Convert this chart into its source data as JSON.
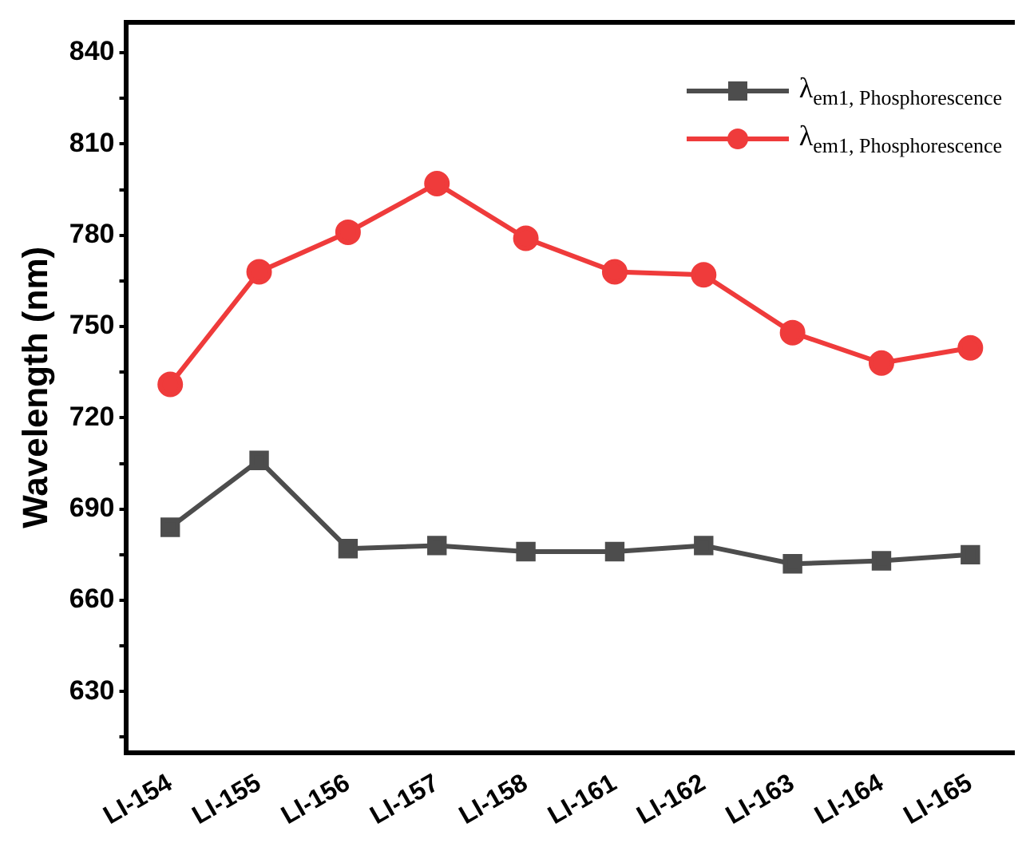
{
  "chart_data": {
    "type": "line",
    "ylabel": "Wavelength (nm)",
    "categories": [
      "LI-154",
      "LI-155",
      "LI-156",
      "LI-157",
      "LI-158",
      "LI-161",
      "LI-162",
      "LI-163",
      "LI-164",
      "LI-165"
    ],
    "series": [
      {
        "name": "λ$_{em1, Phosphorescence}$",
        "color": "#4d4d4d",
        "marker": "square",
        "values": [
          684,
          706,
          677,
          678,
          676,
          676,
          678,
          672,
          673,
          675
        ]
      },
      {
        "name": "λ$_{em1, Phosphorescence}$",
        "color": "#ef3b3b",
        "marker": "circle",
        "values": [
          731,
          768,
          781,
          797,
          779,
          768,
          767,
          748,
          738,
          743
        ]
      }
    ],
    "ylim": [
      610,
      850
    ],
    "yticks": [
      {
        "value": 615,
        "label": null
      },
      630,
      {
        "value": 645,
        "label": null
      },
      660,
      {
        "value": 675,
        "label": null
      },
      690,
      {
        "value": 705,
        "label": null
      },
      720,
      {
        "value": 735,
        "label": null
      },
      750,
      {
        "value": 765,
        "label": null
      },
      780,
      {
        "value": 795,
        "label": null
      },
      810,
      {
        "value": 825,
        "label": null
      },
      840
    ],
    "legend": "top right",
    "grid": false
  }
}
